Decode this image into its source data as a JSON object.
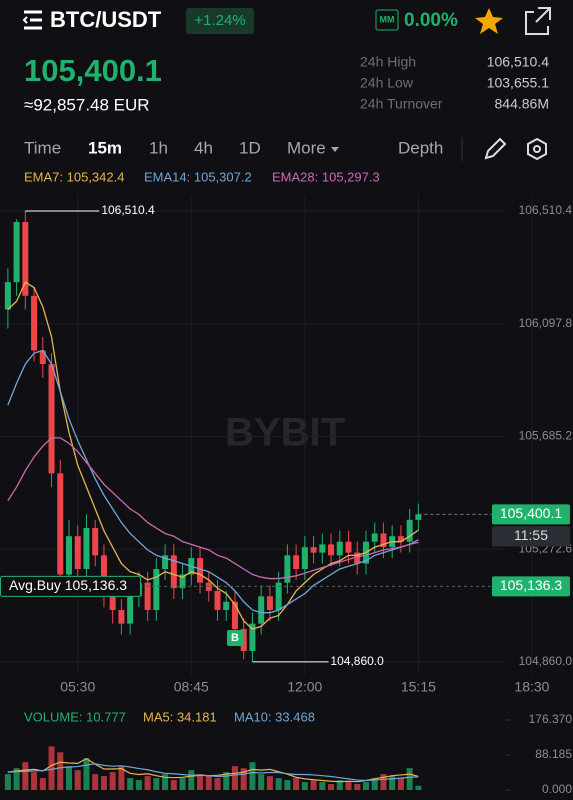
{
  "header": {
    "symbol": "BTC/USDT",
    "change": "+1.24%",
    "mm_badge": "MM",
    "mm_value": "0.00%",
    "price": "105,400.1",
    "price_eur": "≈92,857.48 EUR",
    "stats": [
      {
        "label": "24h High",
        "value": "106,510.4"
      },
      {
        "label": "24h Low",
        "value": "103,655.1"
      },
      {
        "label": "24h Turnover",
        "value": "844.86M"
      }
    ]
  },
  "tabs": {
    "items": [
      "Time",
      "15m",
      "1h",
      "4h",
      "1D",
      "More"
    ],
    "active": 1,
    "depth": "Depth"
  },
  "watermark": "BYBIT",
  "chart_data": [
    {
      "type": "candlestick",
      "up_color": "#20b26c",
      "down_color": "#ef454a",
      "candles": [
        [
          106150,
          106300,
          106080,
          106250
        ],
        [
          106250,
          106480,
          106200,
          106470
        ],
        [
          106470,
          106510.4,
          106150,
          106200
        ],
        [
          106200,
          106230,
          105960,
          106000
        ],
        [
          106000,
          106050,
          105900,
          105950
        ],
        [
          105950,
          105990,
          105500,
          105550
        ],
        [
          105550,
          105600,
          105120,
          105180
        ],
        [
          105180,
          105380,
          105140,
          105320
        ],
        [
          105320,
          105360,
          105150,
          105200
        ],
        [
          105200,
          105400,
          105160,
          105350
        ],
        [
          105350,
          105380,
          105210,
          105250
        ],
        [
          105250,
          105290,
          105060,
          105100
        ],
        [
          105100,
          105140,
          105000,
          105050
        ],
        [
          105050,
          105090,
          104960,
          105000
        ],
        [
          105000,
          105140,
          104960,
          105100
        ],
        [
          105100,
          105190,
          105060,
          105150
        ],
        [
          105150,
          105190,
          105010,
          105050
        ],
        [
          105050,
          105240,
          105010,
          105200
        ],
        [
          105200,
          105290,
          105160,
          105250
        ],
        [
          105250,
          105290,
          105090,
          105130
        ],
        [
          105130,
          105220,
          105090,
          105180
        ],
        [
          105180,
          105280,
          105140,
          105240
        ],
        [
          105240,
          105280,
          105110,
          105150
        ],
        [
          105150,
          105190,
          105080,
          105120
        ],
        [
          105120,
          105160,
          105010,
          105050
        ],
        [
          105050,
          105120,
          105010,
          105080
        ],
        [
          105080,
          105120,
          104940,
          104980
        ],
        [
          104980,
          105020,
          104870,
          104900
        ],
        [
          104900,
          105040,
          104860.0,
          105000
        ],
        [
          105000,
          105140,
          104960,
          105100
        ],
        [
          105100,
          105140,
          105010,
          105050
        ],
        [
          105050,
          105190,
          105010,
          105150
        ],
        [
          105150,
          105290,
          105110,
          105250
        ],
        [
          105250,
          105290,
          105160,
          105200
        ],
        [
          105200,
          105320,
          105160,
          105280
        ],
        [
          105280,
          105320,
          105220,
          105260
        ],
        [
          105260,
          105330,
          105220,
          105290
        ],
        [
          105290,
          105330,
          105210,
          105250
        ],
        [
          105250,
          105340,
          105210,
          105300
        ],
        [
          105300,
          105340,
          105220,
          105260
        ],
        [
          105260,
          105300,
          105180,
          105220
        ],
        [
          105220,
          105340,
          105180,
          105300
        ],
        [
          105300,
          105370,
          105260,
          105330
        ],
        [
          105330,
          105370,
          105240,
          105280
        ],
        [
          105280,
          105360,
          105240,
          105320
        ],
        [
          105320,
          105360,
          105260,
          105300
        ],
        [
          105300,
          105420,
          105260,
          105380
        ],
        [
          105380,
          105440,
          105340,
          105400.1
        ]
      ],
      "series": [
        {
          "name": "EMA7",
          "legend": "EMA7: 105,342.4",
          "color": "#e8b54d",
          "values": [
            106150,
            106180,
            106250,
            106230,
            106160,
            106050,
            105850,
            105700,
            105580,
            105500,
            105420,
            105340,
            105280,
            105220,
            105190,
            105180,
            105160,
            105170,
            105190,
            105180,
            105170,
            105190,
            105180,
            105160,
            105130,
            105110,
            105070,
            105010,
            104980,
            104990,
            105020,
            105030,
            105070,
            105120,
            105150,
            105180,
            105200,
            105220,
            105230,
            105250,
            105250,
            105260,
            105280,
            105290,
            105300,
            105300,
            105320,
            105342.4
          ]
        },
        {
          "name": "EMA14",
          "legend": "EMA14: 105,307.2",
          "color": "#6fa6d8",
          "values": [
            105800,
            105880,
            105950,
            105990,
            106000,
            105950,
            105850,
            105750,
            105670,
            105600,
            105530,
            105470,
            105420,
            105370,
            105330,
            105300,
            105270,
            105250,
            105240,
            105230,
            105220,
            105210,
            105200,
            105190,
            105170,
            105150,
            105120,
            105080,
            105050,
            105040,
            105040,
            105050,
            105070,
            105090,
            105110,
            105140,
            105160,
            105180,
            105200,
            105210,
            105220,
            105230,
            105250,
            105260,
            105270,
            105280,
            105290,
            105307.2
          ]
        },
        {
          "name": "EMA28",
          "legend": "EMA28: 105,297.3",
          "color": "#c86bb4",
          "values": [
            105450,
            105500,
            105560,
            105610,
            105650,
            105680,
            105680,
            105660,
            105630,
            105590,
            105550,
            105510,
            105480,
            105450,
            105420,
            105400,
            105370,
            105350,
            105330,
            105320,
            105300,
            105290,
            105280,
            105270,
            105250,
            105240,
            105220,
            105200,
            105180,
            105170,
            105165,
            105165,
            105170,
            105175,
            105185,
            105195,
            105205,
            105215,
            105225,
            105235,
            105245,
            105250,
            105260,
            105270,
            105275,
            105280,
            105290,
            105297.3
          ]
        }
      ],
      "ylim": [
        104812,
        106569
      ],
      "yticks": [
        {
          "value": 106510.4,
          "label": "106,510.4"
        },
        {
          "value": 106097.8,
          "label": "106,097.8"
        },
        {
          "value": 105685.2,
          "label": "105,685.2"
        },
        {
          "value": 105272.6,
          "label": "105,272.6"
        },
        {
          "value": 104860.0,
          "label": "104,860.0"
        }
      ],
      "xlim": [
        -0.9,
        64.7
      ],
      "xticks": [
        {
          "value": 8,
          "label": "05:30"
        },
        {
          "value": 21,
          "label": "08:45"
        },
        {
          "value": 34,
          "label": "12:00"
        },
        {
          "value": 47,
          "label": "15:15"
        },
        {
          "value": 60,
          "label": "18:30"
        }
      ],
      "high_marker": {
        "value": 106510.4,
        "label": "106,510.4"
      },
      "low_marker": {
        "value": 104860.0,
        "label": "104,860.0"
      },
      "last_price": {
        "value": 105400.1,
        "label": "105,400.1",
        "countdown": "11:55"
      },
      "avg_buy": {
        "value": 105136.3,
        "label": "Avg.Buy 105,136.3",
        "tag": "105,136.3"
      },
      "buy_marker": "B"
    },
    {
      "type": "bar",
      "title": "VOLUME: 10.777",
      "values": [
        40,
        55,
        70,
        45,
        30,
        110,
        95,
        60,
        50,
        80,
        40,
        35,
        45,
        60,
        30,
        25,
        35,
        30,
        40,
        25,
        30,
        50,
        40,
        35,
        30,
        45,
        60,
        55,
        70,
        40,
        35,
        30,
        25,
        30,
        20,
        25,
        20,
        15,
        25,
        20,
        15,
        20,
        30,
        40,
        35,
        30,
        55,
        10.777
      ],
      "ylim": [
        0,
        176.37
      ],
      "yticks": [
        {
          "value": 176.37,
          "label": "176.370"
        },
        {
          "value": 88.185,
          "label": "88.185"
        },
        {
          "value": 0,
          "label": "0.000"
        }
      ],
      "series": [
        {
          "name": "MA5",
          "legend": "MA5: 34.181",
          "color": "#e8b54d",
          "values": [
            45,
            48,
            50,
            52,
            48,
            62,
            70,
            68,
            67,
            79,
            65,
            53,
            53,
            54,
            42,
            39,
            41,
            36,
            32,
            31,
            32,
            35,
            37,
            36,
            37,
            40,
            42,
            45,
            52,
            50,
            52,
            46,
            40,
            32,
            28,
            26,
            24,
            22,
            21,
            22,
            21,
            24,
            28,
            32,
            36,
            38,
            40,
            34.181
          ]
        },
        {
          "name": "MA10",
          "legend": "MA10: 33.468",
          "color": "#6fa6d8",
          "values": [
            45,
            46,
            47,
            48,
            49,
            52,
            56,
            58,
            59,
            63,
            66,
            62,
            60,
            61,
            58,
            54,
            51,
            46,
            42,
            41,
            39,
            37,
            38,
            36,
            34,
            35,
            38,
            40,
            44,
            43,
            44,
            44,
            41,
            39,
            39,
            38,
            36,
            34,
            31,
            28,
            25,
            24,
            25,
            27,
            28,
            30,
            32,
            33.468
          ]
        }
      ]
    }
  ]
}
